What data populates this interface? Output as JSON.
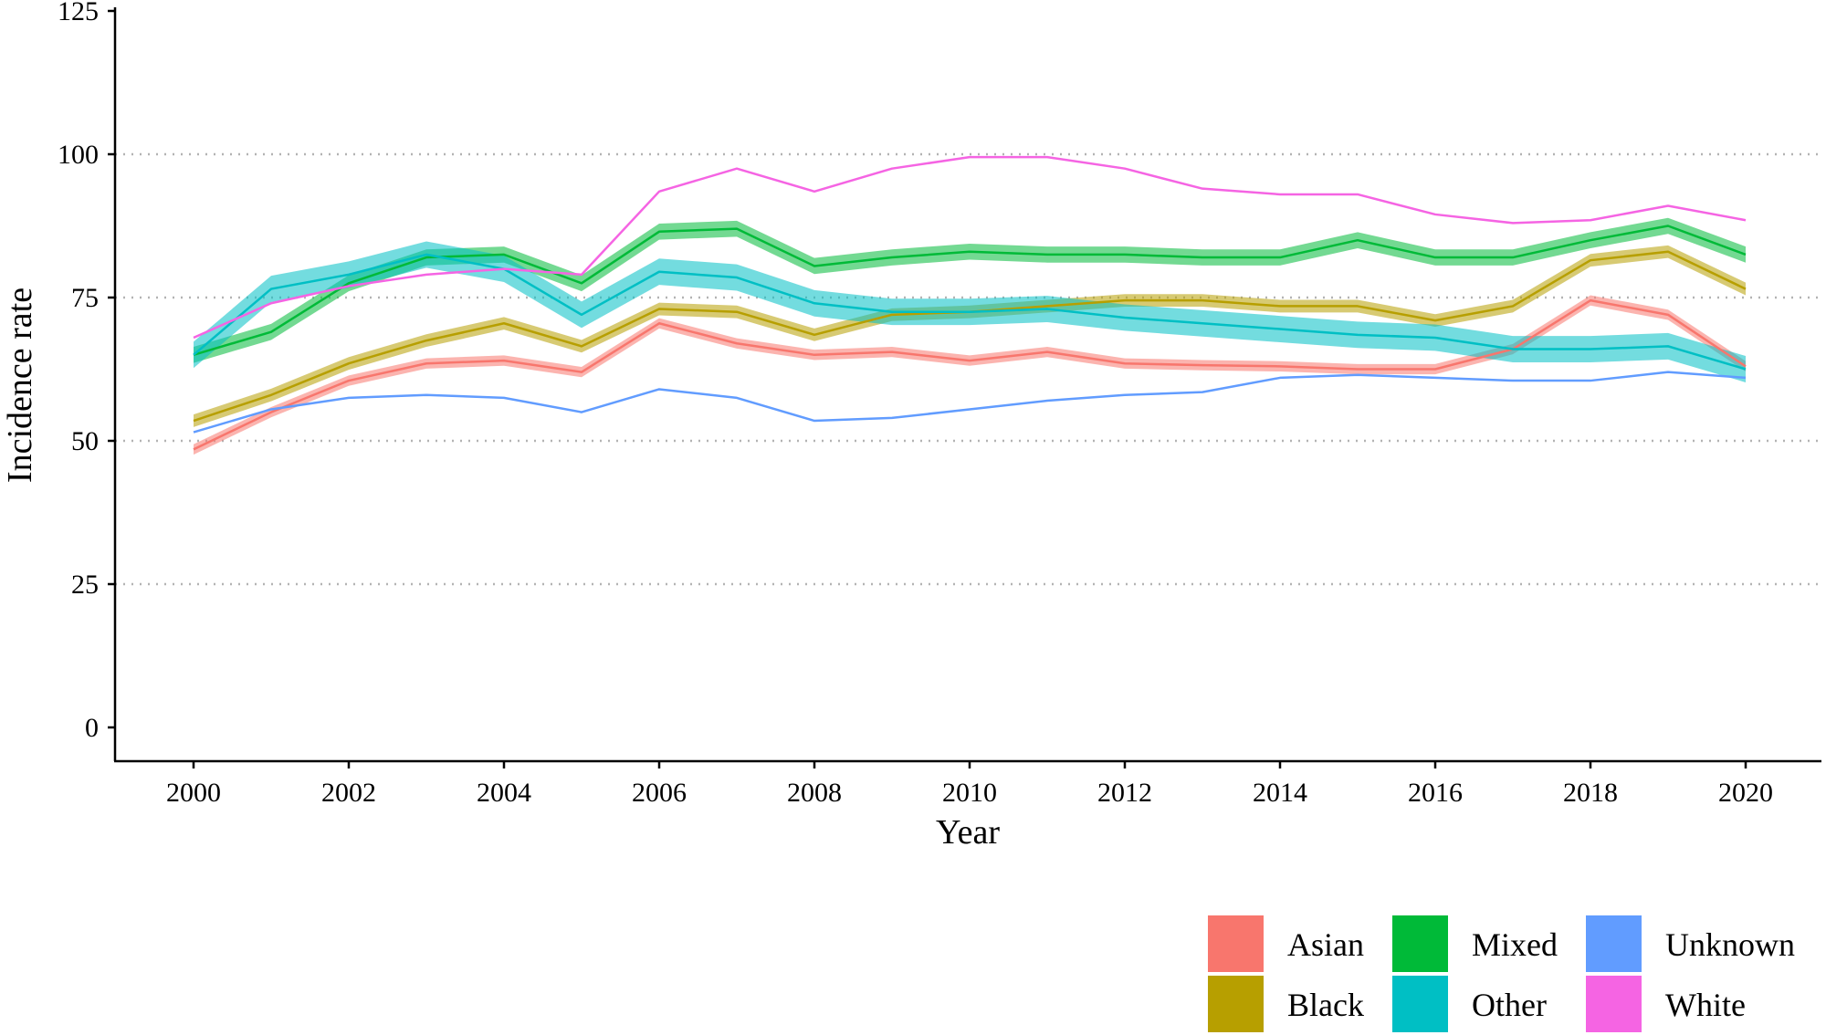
{
  "chart_data": {
    "type": "line",
    "xlabel": "Year",
    "ylabel": "Incidence rate",
    "xlim": [
      1999.5,
      2021
    ],
    "ylim": [
      -6,
      125
    ],
    "x_ticks": [
      2000,
      2002,
      2004,
      2006,
      2008,
      2010,
      2012,
      2014,
      2016,
      2018,
      2020
    ],
    "y_ticks": [
      0,
      25,
      50,
      75,
      100,
      125
    ],
    "x_tick_labels": [
      "2000",
      "2002",
      "2004",
      "2006",
      "2008",
      "2010",
      "2012",
      "2014",
      "2016",
      "2018",
      "2020"
    ],
    "y_tick_labels": [
      "0",
      "25",
      "50",
      "75",
      "100",
      "125"
    ],
    "y_gridlines": [
      25,
      50,
      75,
      100
    ],
    "grid": "horizontal dotted",
    "legend_position": "bottom-right",
    "x": [
      2000,
      2001,
      2002,
      2003,
      2004,
      2005,
      2006,
      2007,
      2008,
      2009,
      2010,
      2011,
      2012,
      2013,
      2014,
      2015,
      2016,
      2017,
      2018,
      2019,
      2020
    ],
    "series": [
      {
        "name": "Asian",
        "color": "#F8766D",
        "ribbon_halfwidth": 0.9,
        "values": [
          48.5,
          55.0,
          60.5,
          63.5,
          64.0,
          62.0,
          70.5,
          67.0,
          65.0,
          65.5,
          64.0,
          65.5,
          63.5,
          63.2,
          63.0,
          62.5,
          62.5,
          66.0,
          74.5,
          72.0,
          63.0
        ]
      },
      {
        "name": "Black",
        "color": "#B79F00",
        "ribbon_halfwidth": 1.1,
        "values": [
          53.5,
          58.0,
          63.5,
          67.5,
          70.5,
          66.5,
          73.0,
          72.5,
          68.5,
          72.0,
          72.5,
          73.5,
          74.5,
          74.5,
          73.5,
          73.5,
          71.0,
          73.5,
          81.5,
          83.0,
          76.5
        ]
      },
      {
        "name": "Mixed",
        "color": "#00BA38",
        "ribbon_halfwidth": 1.4,
        "values": [
          65.0,
          69.0,
          77.5,
          82.0,
          82.5,
          77.5,
          86.5,
          87.0,
          80.5,
          82.0,
          83.0,
          82.5,
          82.5,
          82.0,
          82.0,
          85.0,
          82.0,
          82.0,
          85.0,
          87.5,
          82.5
        ]
      },
      {
        "name": "Other",
        "color": "#00BFC4",
        "ribbon_halfwidth": 2.3,
        "values": [
          65.0,
          76.5,
          79.0,
          82.5,
          80.0,
          72.0,
          79.5,
          78.5,
          74.0,
          72.5,
          72.5,
          73.0,
          71.5,
          70.5,
          69.5,
          68.5,
          68.0,
          66.0,
          66.0,
          66.5,
          62.5
        ]
      },
      {
        "name": "Unknown",
        "color": "#619CFF",
        "ribbon_halfwidth": 0.3,
        "values": [
          51.5,
          55.5,
          57.5,
          58.0,
          57.5,
          55.0,
          59.0,
          57.5,
          53.5,
          54.0,
          55.5,
          57.0,
          58.0,
          58.5,
          61.0,
          61.5,
          61.0,
          60.5,
          60.5,
          62.0,
          61.0
        ]
      },
      {
        "name": "White",
        "color": "#F564E3",
        "ribbon_halfwidth": 0.3,
        "values": [
          68.0,
          74.0,
          77.0,
          79.0,
          80.0,
          79.0,
          93.5,
          97.5,
          93.5,
          97.5,
          99.5,
          99.5,
          97.5,
          94.0,
          93.0,
          93.0,
          89.5,
          88.0,
          88.5,
          91.0,
          88.5
        ]
      }
    ]
  }
}
